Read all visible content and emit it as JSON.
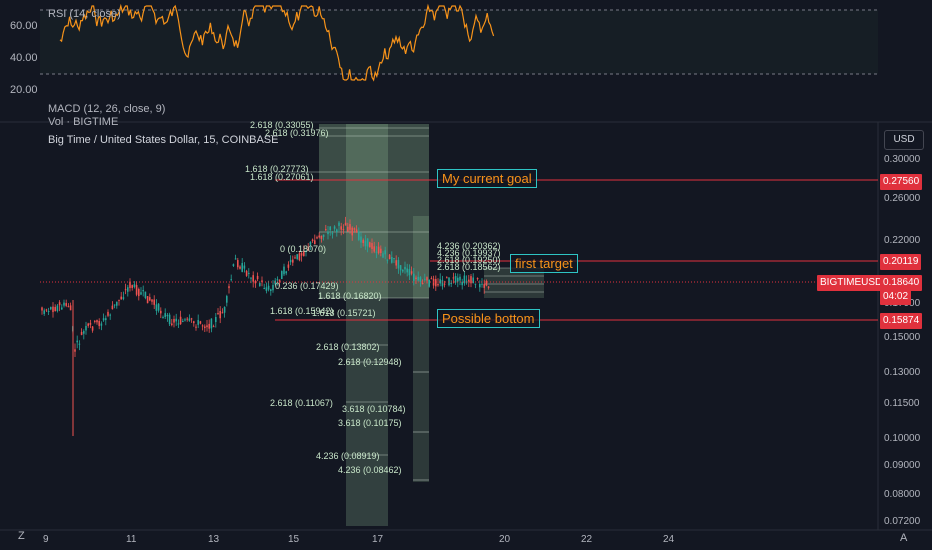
{
  "rsi": {
    "label": "RSI (14, close)",
    "ticks": [
      "60.00",
      "40.00",
      "20.00"
    ]
  },
  "macd": {
    "label": "MACD (12, 26, close, 9)"
  },
  "volume": {
    "label": "Vol · BIGTIME"
  },
  "chart": {
    "title": "Big Time / United States Dollar, 15, COINBASE",
    "currency_button": "USD",
    "price_ticks": [
      "0.30000",
      "0.26000",
      "0.22000",
      "0.18000",
      "0.17000",
      "0.15000",
      "0.13000",
      "0.11500",
      "0.10000",
      "0.09000",
      "0.08000",
      "0.07200"
    ],
    "date_ticks": [
      "9",
      "11",
      "13",
      "15",
      "17",
      "20",
      "22",
      "24"
    ],
    "symbol_badge": "BIGTIMEUSD",
    "current_price": "0.18640",
    "countdown": "04:02",
    "corner_left": "Z",
    "corner_right": "A"
  },
  "levels": [
    {
      "label": "My current goal",
      "price": "0.27560"
    },
    {
      "label": "first target",
      "price": "0.20119"
    },
    {
      "label": "Possible bottom",
      "price": "0.15874"
    }
  ],
  "fib_labels": [
    "2.618 (0.33055)",
    "2.618 (0.31976)",
    "1.618 (0.27773)",
    "1.618 (0.27061)",
    "4.236 (0.20362)",
    "4.236 (0.19937)",
    "2.618 (0.19250)",
    "2.618 (0.18562)",
    "0 (0.18070)",
    "0.236 (0.17429)",
    "1.618 (0.16820)",
    "1.618 (0.15942)",
    "1.618 (0.15721)",
    "2.618 (0.13802)",
    "2.618 (0.12948)",
    "2.618 (0.11067)",
    "3.618 (0.10784)",
    "3.618 (0.10175)",
    "4.236 (0.08919)",
    "4.236 (0.08462)"
  ],
  "colors": {
    "bull": "#26a69a",
    "bear": "#ef5350",
    "rsi_line": "#f7931a",
    "level": "#e0313d",
    "fib_zone": "#a5d6a7"
  }
}
